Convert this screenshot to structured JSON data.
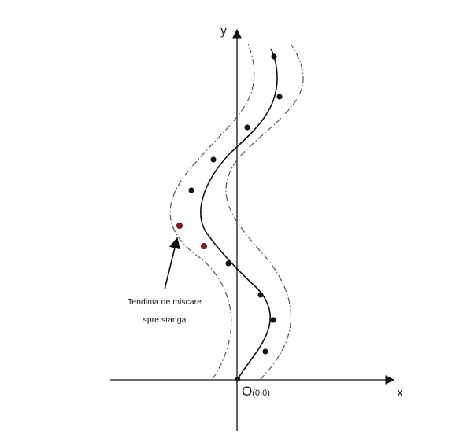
{
  "axes": {
    "x_label": "x",
    "y_label": "y"
  },
  "origin": {
    "letter": "O",
    "coords": "(0,0)"
  },
  "annotation": {
    "line1": "Tendinta de miscare",
    "line2": "spre stanga"
  },
  "colors": {
    "ink": "#111111",
    "dash": "#555555",
    "highlight_point": "#8b1a1a",
    "background": "#ffffff"
  }
}
